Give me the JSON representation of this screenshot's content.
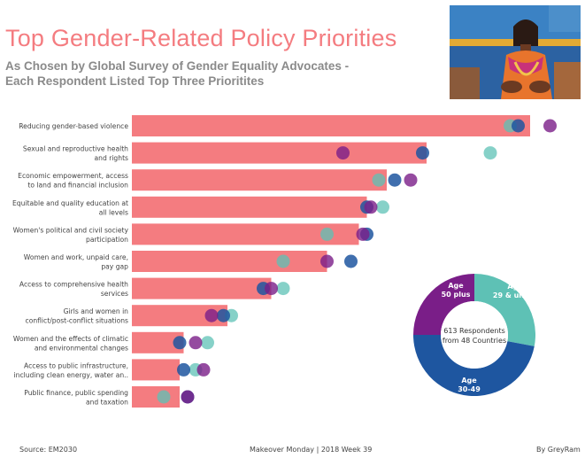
{
  "header": {
    "title": "Top Gender-Related Policy Priorities",
    "subtitle_line1": "As Chosen by Global Survey of Gender Equality Advocates -",
    "subtitle_line2": "Each Respondent Listed Top Three Prioritites"
  },
  "footer": {
    "source": "Source: EM2030",
    "event": "Makeover Monday | 2018 Week 39",
    "author": "By GreyRam"
  },
  "colors": {
    "bar": "#f47c80",
    "age_29_under": "#5ec1b5",
    "age_30_49": "#1e56a0",
    "age_50_plus": "#7a1e88",
    "text": "#444444"
  },
  "chart_data": [
    {
      "type": "bar",
      "orientation": "horizontal",
      "note": "bar = overall share; dots = share by age group (no value axis printed, values are relative estimates)",
      "categories": [
        [
          "Reducing gender-based violence"
        ],
        [
          "Sexual and reproductive health",
          "and rights"
        ],
        [
          "Economic empowerment, access",
          "to land and financial inclusion"
        ],
        [
          "Equitable and quality education at",
          "all levels"
        ],
        [
          "Women's political and civil society",
          "participation"
        ],
        [
          "Women and work, unpaid care,",
          "pay gap"
        ],
        [
          "Access to comprehensive health",
          "services"
        ],
        [
          "Girls and women in",
          "conflict/post-conflict situations"
        ],
        [
          "Women and the effects of climatic",
          "and environmental changes"
        ],
        [
          "Access to public infrastructure,",
          "including clean energy, water an.."
        ],
        [
          "Public finance, public spending",
          "and taxation"
        ]
      ],
      "values": [
        100,
        74,
        64,
        59,
        57,
        49,
        35,
        24,
        13,
        12,
        12
      ],
      "series": [
        {
          "name": "29 & under",
          "values": [
            95,
            90,
            62,
            63,
            49,
            38,
            38,
            25,
            19,
            16,
            8
          ]
        },
        {
          "name": "30-49",
          "values": [
            97,
            73,
            66,
            59,
            59,
            55,
            33,
            23,
            12,
            13,
            14
          ]
        },
        {
          "name": "50 plus",
          "values": [
            105,
            53,
            70,
            60,
            58,
            49,
            35,
            20,
            16,
            18,
            14
          ]
        }
      ]
    },
    {
      "type": "pie",
      "variant": "donut",
      "center_label_line1": "613 Respondents",
      "center_label_line2": "from 48 Countries",
      "slices": [
        {
          "name": "29 & under",
          "label_line1": "Age",
          "label_line2": "29 & under",
          "value": 28
        },
        {
          "name": "30-49",
          "label_line1": "Age",
          "label_line2": "30-49",
          "value": 47
        },
        {
          "name": "50 plus",
          "label_line1": "Age",
          "label_line2": "50 plus",
          "value": 25
        }
      ]
    }
  ]
}
